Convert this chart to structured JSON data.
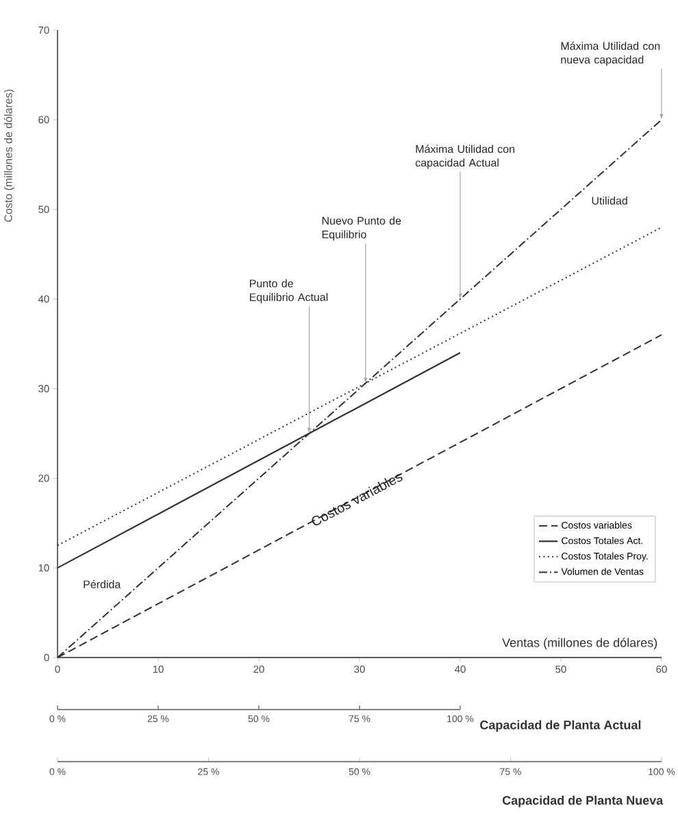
{
  "chart_data": {
    "type": "line",
    "xlabel": "Ventas (millones de dólares)",
    "ylabel": "Costo (millones de dólares)",
    "xlim": [
      0,
      60
    ],
    "xticks": [
      0,
      10,
      20,
      30,
      40,
      50,
      60
    ],
    "ylim": [
      0,
      70
    ],
    "yticks": [
      0,
      10,
      20,
      30,
      40,
      50,
      60,
      70
    ],
    "x2lim": [
      0,
      100
    ],
    "x2ticks": [
      {
        "value": 0,
        "label": "0 %"
      },
      {
        "value": 25,
        "label": "25 %"
      },
      {
        "value": 50,
        "label": "50 %"
      },
      {
        "value": 75,
        "label": "75 %"
      },
      {
        "value": 100,
        "label": "100 %"
      }
    ],
    "x2label": "Capacidad de Planta Nueva",
    "legend": "bottom right",
    "marker": "none",
    "series": [
      {
        "name": "Costos variables",
        "color": "#303030",
        "line_style": "dashed",
        "x": [
          0,
          60
        ],
        "values": [
          0,
          36
        ]
      },
      {
        "name": "Costos Totales Act.",
        "color": "#303030",
        "line_style": "solid",
        "x": [
          0,
          40
        ],
        "values": [
          10,
          34
        ]
      },
      {
        "name": "Costos Totales Proy.",
        "color": "#303030",
        "line_style": "dotted",
        "x": [
          0,
          60
        ],
        "values": [
          12.5,
          48
        ]
      },
      {
        "name": "Volumen de Ventas",
        "color": "#303030",
        "line_style": "dashdot",
        "x": [
          0,
          60
        ],
        "values": [
          0,
          60
        ]
      }
    ],
    "annotations": [
      {
        "text": "Punto de Equilibrio Actual",
        "x": 25,
        "y": 25
      },
      {
        "text": "Nuevo Punto de Equilibrio",
        "x": 30.6,
        "y": 30.6
      },
      {
        "text": "Máxima Utilidad con capacidad Actual",
        "x": 40,
        "y": 40
      },
      {
        "text": "Máxima Utilidad con nueva capacidad",
        "x": 60,
        "y": 60
      },
      "Utilidad",
      "Pérdida",
      "Costos variables",
      "0 %",
      "25 %",
      "50 %",
      "75 %",
      "100 %",
      "Capacidad de Planta Actual"
    ]
  }
}
